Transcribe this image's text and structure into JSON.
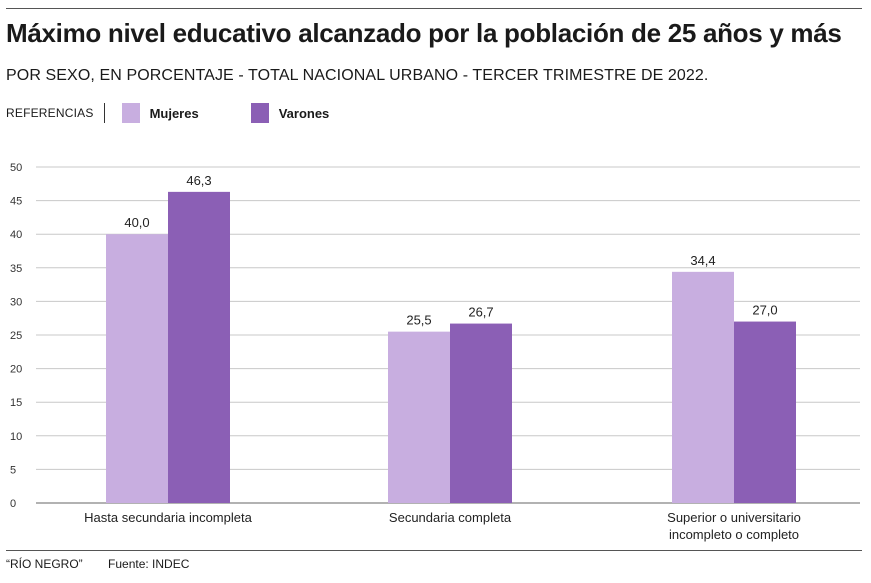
{
  "title": "Máximo nivel educativo alcanzado por la población de 25 años y más",
  "subtitle": "POR SEXO, EN PORCENTAJE - TOTAL NACIONAL URBANO - TERCER TRIMESTRE DE 2022.",
  "legend": {
    "title": "REFERENCIAS",
    "items": [
      {
        "label": "Mujeres",
        "color": "#c8aee0"
      },
      {
        "label": "Varones",
        "color": "#8b5fb5"
      }
    ]
  },
  "footer": {
    "source_outlet": "“RÍO NEGRO”",
    "source": "Fuente: INDEC"
  },
  "chart_data": {
    "type": "bar",
    "categories": [
      [
        "Hasta secundaria incompleta"
      ],
      [
        "Secundaria completa"
      ],
      [
        "Superior o universitario",
        "incompleto o completo"
      ]
    ],
    "series": [
      {
        "name": "Mujeres",
        "values": [
          40.0,
          25.5,
          34.4
        ],
        "labels": [
          "40,0",
          "25,5",
          "34,4"
        ],
        "color": "#c8aee0"
      },
      {
        "name": "Varones",
        "values": [
          46.3,
          26.7,
          27.0
        ],
        "labels": [
          "46,3",
          "26,7",
          "27,0"
        ],
        "color": "#8b5fb5"
      }
    ],
    "ylim": [
      0,
      50
    ],
    "yticks": [
      0,
      5,
      10,
      15,
      20,
      25,
      30,
      35,
      40,
      45,
      50
    ],
    "grid": true,
    "legend_position": "top-left"
  }
}
